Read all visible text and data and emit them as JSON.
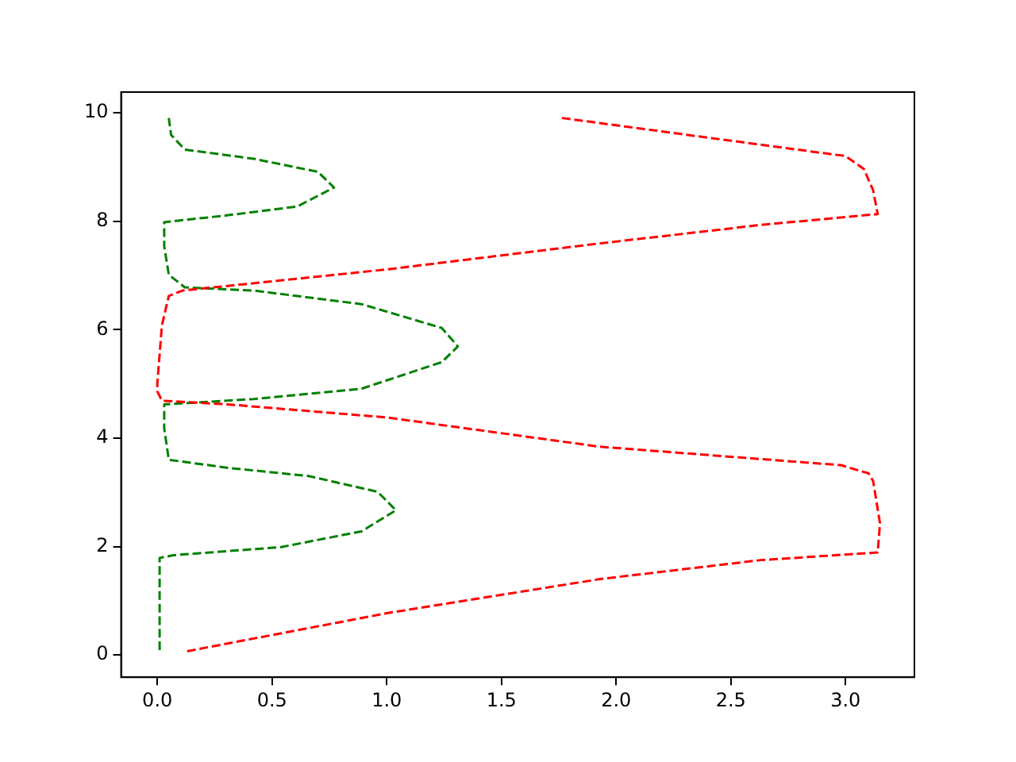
{
  "chart_data": {
    "type": "line",
    "line_style": "dashed",
    "marker": "none",
    "grid": false,
    "legend": false,
    "xlim": [
      -0.158,
      3.3
    ],
    "ylim": [
      -0.41,
      10.38
    ],
    "xticks": [
      {
        "value": 0,
        "label": "0.0"
      },
      {
        "value": 0.5,
        "label": "0.5"
      },
      {
        "value": 1,
        "label": "1.0"
      },
      {
        "value": 1.5,
        "label": "1.5"
      },
      {
        "value": 2,
        "label": "2.0"
      },
      {
        "value": 2.5,
        "label": "2.5"
      },
      {
        "value": 3,
        "label": "3.0"
      }
    ],
    "yticks": [
      0,
      2,
      4,
      6,
      8,
      10
    ],
    "series": [
      {
        "color": "#ff0000",
        "x": [
          0.13,
          1.0,
          1.93,
          2.63,
          3.14,
          3.15,
          3.12,
          3.1,
          2.98,
          1.93,
          1.0,
          0.31,
          0.02,
          0.0,
          0.0,
          0.02,
          0.05,
          0.11,
          1.0,
          1.93,
          2.63,
          3.14,
          3.12,
          3.08,
          3.0,
          2.4,
          1.75
        ],
        "values": [
          0.07,
          0.77,
          1.4,
          1.75,
          1.89,
          2.43,
          3.21,
          3.35,
          3.5,
          3.84,
          4.38,
          4.62,
          4.69,
          4.86,
          5.01,
          6.08,
          6.62,
          6.72,
          7.11,
          7.59,
          7.93,
          8.13,
          8.57,
          8.96,
          9.2,
          9.54,
          9.91
        ]
      },
      {
        "color": "#008000",
        "x": [
          0.01,
          0.01,
          0.07,
          0.54,
          0.89,
          1.04,
          0.96,
          0.66,
          0.31,
          0.05,
          0.03,
          0.03,
          0.42,
          0.89,
          1.24,
          1.31,
          1.24,
          0.89,
          0.42,
          0.12,
          0.05,
          0.03,
          0.03,
          0.31,
          0.61,
          0.77,
          0.7,
          0.42,
          0.12,
          0.06,
          0.05
        ],
        "values": [
          0.09,
          1.79,
          1.84,
          1.99,
          2.28,
          2.67,
          3.01,
          3.3,
          3.45,
          3.6,
          4.18,
          4.62,
          4.72,
          4.91,
          5.4,
          5.69,
          6.03,
          6.47,
          6.72,
          6.78,
          7.01,
          7.54,
          7.98,
          8.11,
          8.27,
          8.62,
          8.91,
          9.15,
          9.32,
          9.59,
          9.9
        ]
      }
    ]
  }
}
